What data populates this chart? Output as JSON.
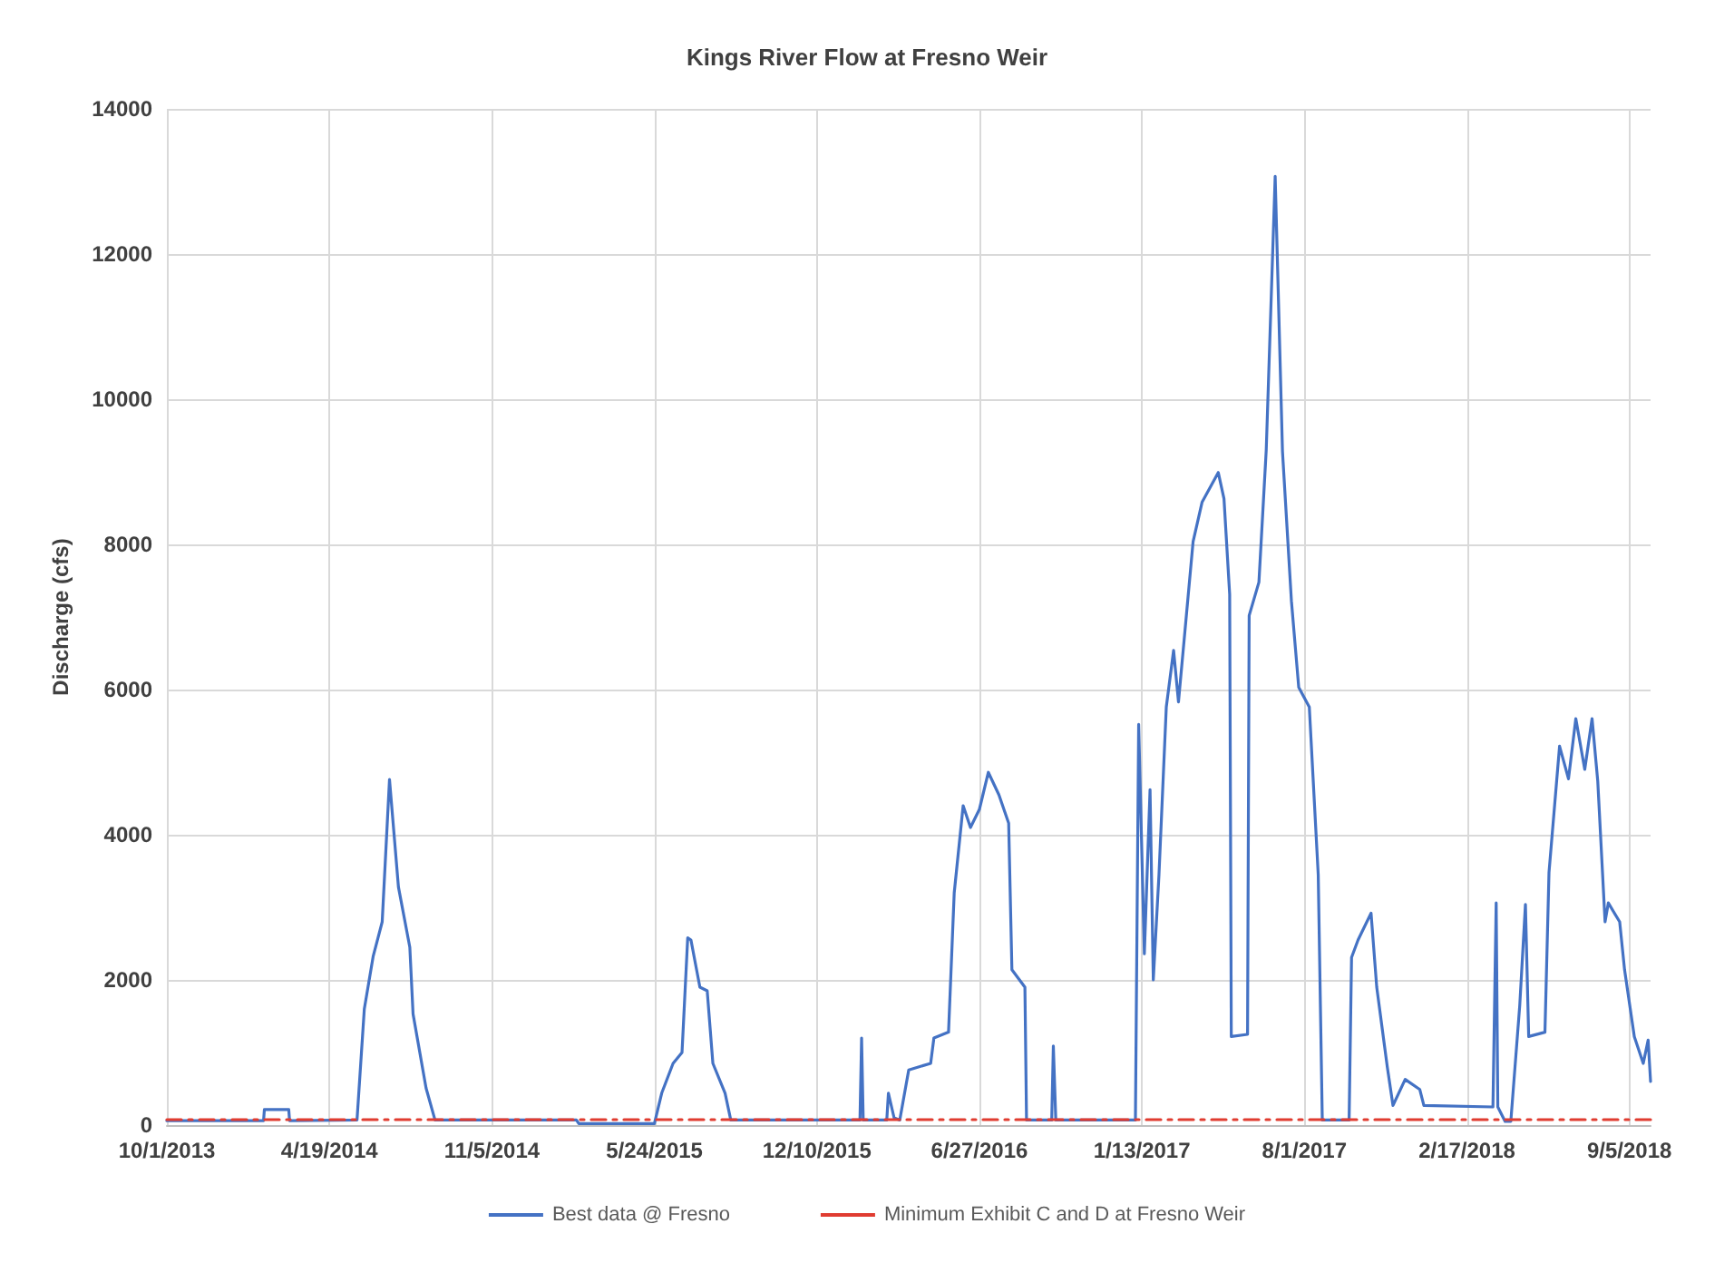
{
  "chart_data": {
    "type": "line",
    "title": "Kings River Flow at Fresno Weir",
    "ylabel": "Discharge (cfs)",
    "xlim": [
      "2013-10-01",
      "2018-10-01"
    ],
    "ylim": [
      0,
      14000
    ],
    "xticks": [
      {
        "value": "2013-10-01",
        "label": "10/1/2013"
      },
      {
        "value": "2014-04-19",
        "label": "4/19/2014"
      },
      {
        "value": "2014-11-05",
        "label": "11/5/2014"
      },
      {
        "value": "2015-05-24",
        "label": "5/24/2015"
      },
      {
        "value": "2015-12-10",
        "label": "12/10/2015"
      },
      {
        "value": "2016-06-27",
        "label": "6/27/2016"
      },
      {
        "value": "2017-01-13",
        "label": "1/13/2017"
      },
      {
        "value": "2017-08-01",
        "label": "8/1/2017"
      },
      {
        "value": "2018-02-17",
        "label": "2/17/2018"
      },
      {
        "value": "2018-09-05",
        "label": "9/5/2018"
      }
    ],
    "yticks": [
      0,
      2000,
      4000,
      6000,
      8000,
      10000,
      12000,
      14000
    ],
    "grid": true,
    "legend": "bottom",
    "marker": "none",
    "series": [
      {
        "name": "Best data @ Fresno",
        "color": "#4472c4",
        "line_style": "solid",
        "x": [
          "2013-10-01",
          "2014-01-28",
          "2014-01-29",
          "2014-02-28",
          "2014-03-01",
          "2014-05-23",
          "2014-06-01",
          "2014-06-12",
          "2014-06-23",
          "2014-07-02",
          "2014-07-13",
          "2014-07-27",
          "2014-07-31",
          "2014-08-16",
          "2014-08-27",
          "2015-02-17",
          "2015-02-20",
          "2015-05-24",
          "2015-06-02",
          "2015-06-16",
          "2015-06-27",
          "2015-07-04",
          "2015-07-08",
          "2015-07-19",
          "2015-07-28",
          "2015-08-04",
          "2015-08-19",
          "2015-08-26",
          "2016-02-01",
          "2016-02-03",
          "2016-02-05",
          "2016-03-05",
          "2016-03-07",
          "2016-03-14",
          "2016-03-21",
          "2016-04-01",
          "2016-04-28",
          "2016-05-02",
          "2016-05-20",
          "2016-05-27",
          "2016-06-07",
          "2016-06-16",
          "2016-06-27",
          "2016-07-08",
          "2016-07-21",
          "2016-08-02",
          "2016-08-06",
          "2016-08-22",
          "2016-08-24",
          "2016-09-24",
          "2016-09-26",
          "2016-09-29",
          "2017-01-05",
          "2017-01-09",
          "2017-01-16",
          "2017-01-23",
          "2017-01-27",
          "2017-02-03",
          "2017-02-12",
          "2017-02-21",
          "2017-02-27",
          "2017-03-17",
          "2017-03-28",
          "2017-04-17",
          "2017-04-24",
          "2017-05-01",
          "2017-05-03",
          "2017-05-23",
          "2017-05-25",
          "2017-06-06",
          "2017-06-15",
          "2017-06-26",
          "2017-07-05",
          "2017-07-16",
          "2017-07-25",
          "2017-08-07",
          "2017-08-18",
          "2017-08-23",
          "2017-09-25",
          "2017-09-28",
          "2017-10-06",
          "2017-10-22",
          "2017-10-29",
          "2017-11-11",
          "2017-11-18",
          "2017-12-03",
          "2017-12-21",
          "2017-12-26",
          "2018-03-21",
          "2018-03-25",
          "2018-03-27",
          "2018-04-05",
          "2018-04-12",
          "2018-04-23",
          "2018-04-30",
          "2018-05-04",
          "2018-05-24",
          "2018-05-29",
          "2018-06-11",
          "2018-06-22",
          "2018-07-01",
          "2018-07-12",
          "2018-07-21",
          "2018-07-28",
          "2018-08-06",
          "2018-08-10",
          "2018-08-24",
          "2018-08-30",
          "2018-09-11",
          "2018-09-22",
          "2018-09-28",
          "2018-10-01"
        ],
        "values": [
          60,
          60,
          215,
          215,
          60,
          70,
          1600,
          2330,
          2800,
          4760,
          3280,
          2450,
          1530,
          510,
          70,
          70,
          20,
          20,
          440,
          850,
          1000,
          2580,
          2550,
          1900,
          1850,
          850,
          440,
          70,
          70,
          1200,
          70,
          70,
          440,
          100,
          70,
          760,
          850,
          1200,
          1280,
          3200,
          4400,
          4100,
          4350,
          4860,
          4550,
          4160,
          2140,
          1900,
          70,
          70,
          1090,
          70,
          70,
          5520,
          2360,
          4620,
          2000,
          3450,
          5760,
          6540,
          5830,
          8040,
          8580,
          8990,
          8630,
          7310,
          1220,
          1250,
          7020,
          7480,
          9300,
          13070,
          9280,
          7220,
          6030,
          5760,
          3450,
          70,
          70,
          2310,
          2550,
          2920,
          1900,
          800,
          270,
          630,
          490,
          270,
          250,
          3060,
          250,
          50,
          50,
          1650,
          3040,
          1220,
          1280,
          3480,
          5220,
          4770,
          5600,
          4900,
          5600,
          4740,
          2800,
          3060,
          2800,
          2140,
          1220,
          850,
          1170,
          600
        ]
      },
      {
        "name": "Minimum Exhibit C and D at Fresno Weir",
        "color": "#e03c31",
        "line_style": "dashed",
        "x": [
          "2013-10-01",
          "2018-10-01"
        ],
        "values": [
          75,
          75
        ]
      }
    ]
  }
}
